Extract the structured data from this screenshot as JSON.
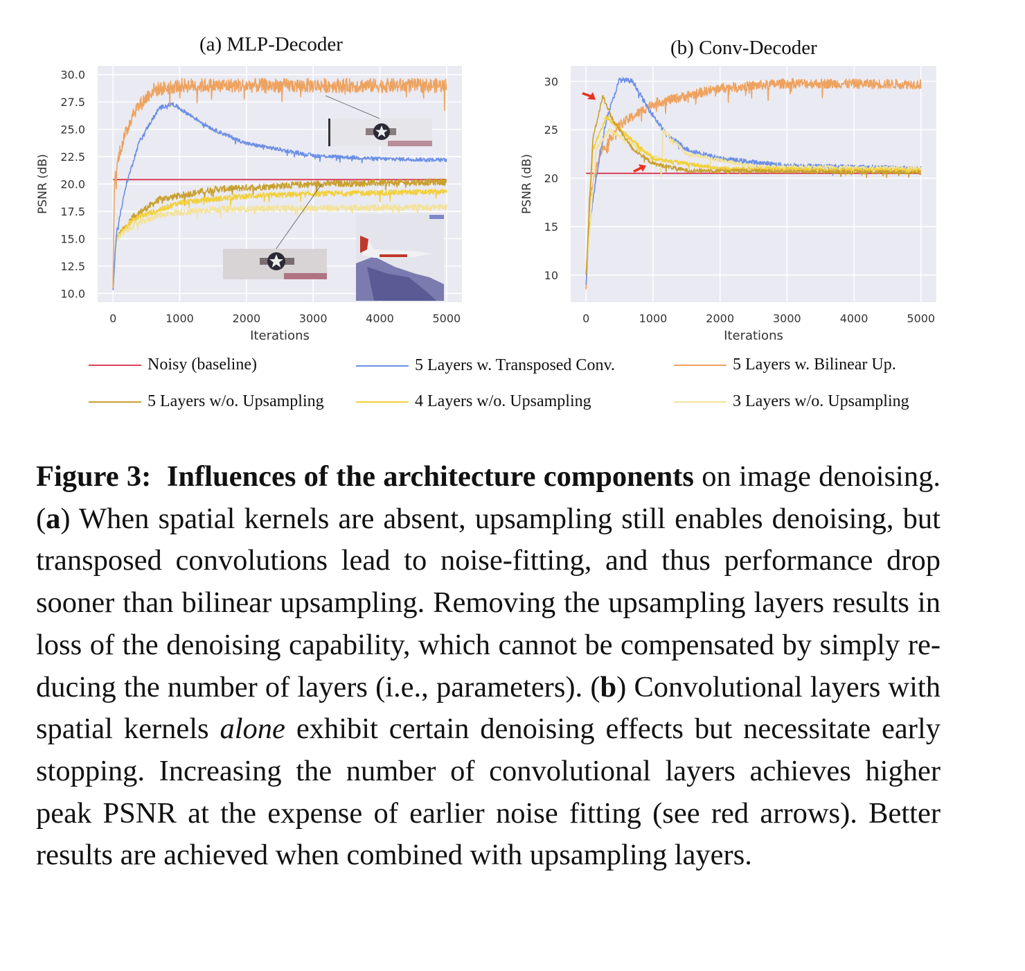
{
  "figure": {
    "panels": [
      {
        "title": "(a) MLP-Decoder"
      },
      {
        "title": "(b) Conv-Decoder"
      }
    ],
    "legend": [
      {
        "label": "Noisy (baseline)",
        "color": "#d9425a"
      },
      {
        "label": "5 Layers w. Transposed Conv.",
        "color": "#6b8fe6"
      },
      {
        "label": "5 Layers w. Bilinear Up.",
        "color": "#eea25e"
      },
      {
        "label": "5 Layers w/o. Upsampling",
        "color": "#c9a030"
      },
      {
        "label": "4 Layers w/o. Upsampling",
        "color": "#f2d03b"
      },
      {
        "label": "3 Layers w/o. Upsampling",
        "color": "#f3e39a"
      }
    ]
  },
  "chart_data": [
    {
      "type": "line",
      "title": "(a) MLP-Decoder",
      "xlabel": "Iterations",
      "ylabel": "PSNR (dB)",
      "xlim": [
        -230,
        5230
      ],
      "ylim": [
        9.2,
        30.8
      ],
      "xticks": [
        "0",
        "1000",
        "2000",
        "3000",
        "4000",
        "5000"
      ],
      "xtick_values": [
        0,
        1000,
        2000,
        3000,
        4000,
        5000
      ],
      "yticks": [
        "10.0",
        "12.5",
        "15.0",
        "17.5",
        "20.0",
        "22.5",
        "25.0",
        "27.5",
        "30.0"
      ],
      "ytick_values": [
        10,
        12.5,
        15,
        17.5,
        20,
        22.5,
        25,
        27.5,
        30
      ],
      "grid": true,
      "series": [
        {
          "name": "Noisy (baseline)",
          "noise": 0,
          "points": [
            [
              0,
              20.4
            ],
            [
              5000,
              20.4
            ]
          ]
        },
        {
          "name": "5 Layers w/o. Upsampling",
          "noise": 0.6,
          "points": [
            [
              0,
              10.3
            ],
            [
              50,
              15
            ],
            [
              300,
              17
            ],
            [
              700,
              18.6
            ],
            [
              1500,
              19.5
            ],
            [
              3000,
              20
            ],
            [
              5000,
              20.2
            ]
          ]
        },
        {
          "name": "4 Layers w/o. Upsampling",
          "noise": 0.5,
          "points": [
            [
              0,
              10.3
            ],
            [
              50,
              15
            ],
            [
              300,
              16.8
            ],
            [
              1000,
              18.3
            ],
            [
              2000,
              18.9
            ],
            [
              3000,
              19.1
            ],
            [
              5000,
              19.3
            ]
          ]
        },
        {
          "name": "3 Layers w/o. Upsampling",
          "noise": 0.6,
          "points": [
            [
              0,
              10.3
            ],
            [
              50,
              15
            ],
            [
              300,
              16.2
            ],
            [
              700,
              17.2
            ],
            [
              1500,
              17.7
            ],
            [
              5000,
              17.9
            ]
          ]
        },
        {
          "name": "5 Layers w. Transposed Conv.",
          "noise": 0.35,
          "points": [
            [
              0,
              10.3
            ],
            [
              50,
              15.5
            ],
            [
              200,
              20
            ],
            [
              400,
              24
            ],
            [
              700,
              27
            ],
            [
              900,
              27.3
            ],
            [
              1100,
              26.5
            ],
            [
              1500,
              25
            ],
            [
              2000,
              23.7
            ],
            [
              3000,
              22.6
            ],
            [
              4000,
              22.3
            ],
            [
              5000,
              22.2
            ]
          ]
        },
        {
          "name": "5 Layers w. Bilinear Up.",
          "noise": 1.3,
          "points": [
            [
              0,
              10.5
            ],
            [
              20,
              20
            ],
            [
              100,
              23
            ],
            [
              300,
              26.5
            ],
            [
              600,
              28.6
            ],
            [
              1000,
              29
            ],
            [
              5000,
              29
            ]
          ]
        }
      ]
    },
    {
      "type": "line",
      "title": "(b) Conv-Decoder",
      "xlabel": "Iterations",
      "ylabel": "PSNR (dB)",
      "xlim": [
        -230,
        5230
      ],
      "ylim": [
        7.2,
        31.6
      ],
      "xticks": [
        "0",
        "1000",
        "2000",
        "3000",
        "4000",
        "5000"
      ],
      "xtick_values": [
        0,
        1000,
        2000,
        3000,
        4000,
        5000
      ],
      "yticks": [
        "10",
        "15",
        "20",
        "25",
        "30"
      ],
      "ytick_values": [
        10,
        15,
        20,
        25,
        30
      ],
      "grid": true,
      "series": [
        {
          "name": "Noisy (baseline)",
          "noise": 0,
          "points": [
            [
              0,
              20.5
            ],
            [
              5000,
              20.5
            ]
          ]
        },
        {
          "name": "5 Layers w. Bilinear Up.",
          "noise": 1.0,
          "points": [
            [
              0,
              8.5
            ],
            [
              50,
              18
            ],
            [
              200,
              22.5
            ],
            [
              500,
              25.5
            ],
            [
              1000,
              27.7
            ],
            [
              2000,
              29.3
            ],
            [
              3000,
              29.8
            ],
            [
              5000,
              29.7
            ]
          ]
        },
        {
          "name": "5 Layers w. Transposed Conv.",
          "noise": 0.5,
          "points": [
            [
              0,
              9
            ],
            [
              50,
              15
            ],
            [
              150,
              20
            ],
            [
              300,
              26
            ],
            [
              500,
              30.2
            ],
            [
              700,
              30
            ],
            [
              900,
              27.5
            ],
            [
              1200,
              24.5
            ],
            [
              1500,
              23
            ],
            [
              2000,
              22
            ],
            [
              3000,
              21.3
            ],
            [
              5000,
              21
            ]
          ]
        },
        {
          "name": "3 Layers w/o. Upsampling",
          "noise": 0.4,
          "points": [
            [
              0,
              10
            ],
            [
              150,
              23
            ],
            [
              350,
              25
            ],
            [
              800,
              23
            ],
            [
              1100,
              22
            ],
            [
              1125,
              20
            ],
            [
              1150,
              25
            ],
            [
              1500,
              22.5
            ],
            [
              2500,
              21.2
            ],
            [
              5000,
              21
            ]
          ]
        },
        {
          "name": "4 Layers w/o. Upsampling",
          "noise": 0.4,
          "points": [
            [
              0,
              10
            ],
            [
              100,
              23
            ],
            [
              300,
              26.3
            ],
            [
              600,
              24.5
            ],
            [
              1000,
              22
            ],
            [
              2000,
              21
            ],
            [
              5000,
              20.8
            ]
          ]
        },
        {
          "name": "5 Layers w/o. Upsampling",
          "noise": 0.4,
          "points": [
            [
              0,
              10
            ],
            [
              100,
              24
            ],
            [
              250,
              28.5
            ],
            [
              400,
              26
            ],
            [
              700,
              23
            ],
            [
              1000,
              21.5
            ],
            [
              1500,
              20.8
            ],
            [
              5000,
              20.6
            ]
          ]
        }
      ],
      "annotations": [
        "red arrow at peak of 5 Layers w/o. Upsampling (~250, 28.5)",
        "red arrow at ~900, 21.5"
      ]
    }
  ],
  "caption": {
    "fig_label": "Figure 3:",
    "bold_title": "Influences of the architecture components",
    "t1": " on im­age denoising. ",
    "a_open": "(",
    "a_letter": "a",
    "a_close": ")",
    "t2": " When spatial kernels are absent, upsampling still enables denoising, but transposed convolutions lead to noise-fitting, and thus performance drop sooner than bilinear upsam­pling. Removing the upsampling layers results in loss of the de­noising capability, which cannot be compensated by simply re­ducing the number of layers (i.e., parameters). ",
    "b_open": "(",
    "b_letter": "b",
    "b_close": ")",
    "t3": " Convolutional layers with spatial kernels ",
    "italic": "alone",
    "t4": " exhibit certain denoising effects but necessitate early stopping. Increasing the number of convolu­tional layers achieves higher peak PSNR at the expense of earlier noise fitting (see red arrows). Better results are achieved when combined with upsampling layers."
  }
}
